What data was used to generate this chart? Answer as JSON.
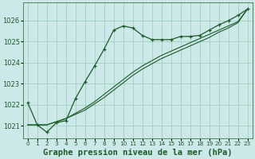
{
  "title": "Graphe pression niveau de la mer (hPa)",
  "background_color": "#cce8e8",
  "plot_bg_color": "#cce8e8",
  "grid_color": "#99ccbb",
  "line_color": "#1a5c28",
  "xlabel_color": "#1a5c28",
  "x_hours": [
    0,
    1,
    2,
    3,
    4,
    5,
    6,
    7,
    8,
    9,
    10,
    11,
    12,
    13,
    14,
    15,
    16,
    17,
    18,
    19,
    20,
    21,
    22,
    23
  ],
  "series_main": [
    1022.1,
    1021.05,
    1020.7,
    1021.15,
    1021.25,
    1022.3,
    1023.1,
    1023.85,
    1024.65,
    1025.55,
    1025.75,
    1025.65,
    1025.3,
    1025.1,
    1025.1,
    1025.1,
    1025.25,
    1025.25,
    1025.3,
    1025.55,
    1025.8,
    1026.0,
    1026.25,
    1026.55
  ],
  "series_lin1": [
    1021.05,
    1021.05,
    1021.05,
    1021.2,
    1021.35,
    1021.6,
    1021.85,
    1022.15,
    1022.5,
    1022.85,
    1023.2,
    1023.55,
    1023.85,
    1024.1,
    1024.35,
    1024.55,
    1024.75,
    1024.95,
    1025.15,
    1025.35,
    1025.55,
    1025.75,
    1025.95,
    1026.55
  ],
  "series_lin2": [
    1021.05,
    1021.05,
    1021.05,
    1021.2,
    1021.35,
    1021.55,
    1021.75,
    1022.05,
    1022.35,
    1022.7,
    1023.05,
    1023.4,
    1023.7,
    1023.95,
    1024.2,
    1024.4,
    1024.6,
    1024.8,
    1025.0,
    1025.2,
    1025.45,
    1025.65,
    1025.9,
    1026.55
  ],
  "ylim": [
    1020.4,
    1026.85
  ],
  "yticks": [
    1021,
    1022,
    1023,
    1024,
    1025,
    1026
  ],
  "yticklabels": [
    "1021",
    "1022",
    "1023",
    "1024",
    "1025",
    "1026"
  ],
  "figsize": [
    3.2,
    2.0
  ],
  "dpi": 100
}
